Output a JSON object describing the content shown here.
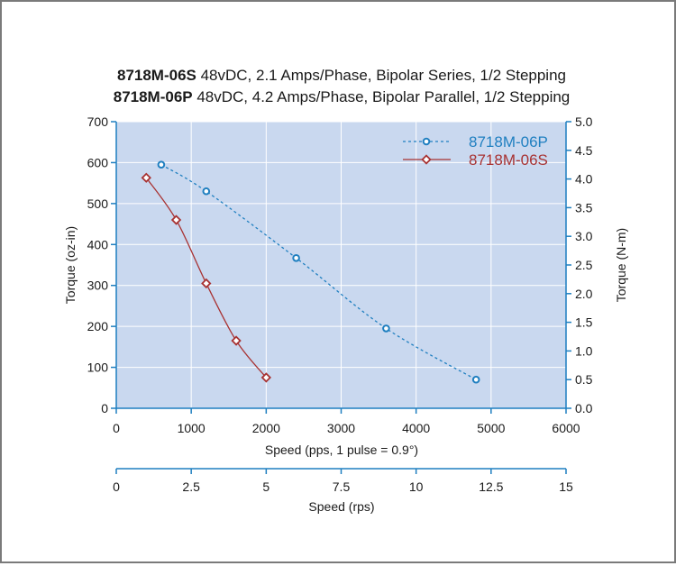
{
  "chart_data": {
    "type": "line",
    "title_lines": [
      {
        "bold": "8718M-06S",
        "rest": " 48vDC, 2.1 Amps/Phase, Bipolar Series, 1/2 Stepping"
      },
      {
        "bold": "8718M-06P",
        "rest": " 48vDC, 4.2 Amps/Phase, Bipolar Parallel, 1/2 Stepping"
      }
    ],
    "xlabel": "Speed (pps, 1 pulse = 0.9°)",
    "ylabel": "Torque (oz-in)",
    "y2label": "Torque (N-m)",
    "x2label": "Speed (rps)",
    "xlim": [
      0,
      6000
    ],
    "ylim": [
      0,
      700
    ],
    "y2lim": [
      0,
      5.0
    ],
    "x2lim": [
      0,
      15
    ],
    "xticks": [
      "0",
      "1000",
      "2000",
      "3000",
      "4000",
      "5000",
      "6000"
    ],
    "yticks": [
      "0",
      "100",
      "200",
      "300",
      "400",
      "500",
      "600",
      "700"
    ],
    "y2ticks": [
      "0.0",
      "0.5",
      "1.0",
      "1.5",
      "2.0",
      "2.5",
      "3.0",
      "3.5",
      "4.0",
      "4.5",
      "5.0"
    ],
    "x2ticks": [
      "0",
      "2.5",
      "5",
      "7.5",
      "10",
      "12.5",
      "15"
    ],
    "grid": true,
    "legend_position": "top-right",
    "series": [
      {
        "name": "8718M-06P",
        "color": "#1f7fc0",
        "marker": "circle",
        "line_style": "dashed",
        "x": [
          600,
          1200,
          2400,
          3600,
          4800
        ],
        "y": [
          595,
          530,
          367,
          195,
          70
        ]
      },
      {
        "name": "8718M-06S",
        "color": "#a83232",
        "marker": "diamond",
        "line_style": "solid",
        "x": [
          400,
          800,
          1200,
          1600,
          2000
        ],
        "y": [
          563,
          460,
          305,
          165,
          75
        ]
      }
    ]
  },
  "colors": {
    "plot_background": "#c9d8ef",
    "grid": "#ffffff",
    "axis": "#1f7fc0",
    "text": "#1a1a1a"
  }
}
